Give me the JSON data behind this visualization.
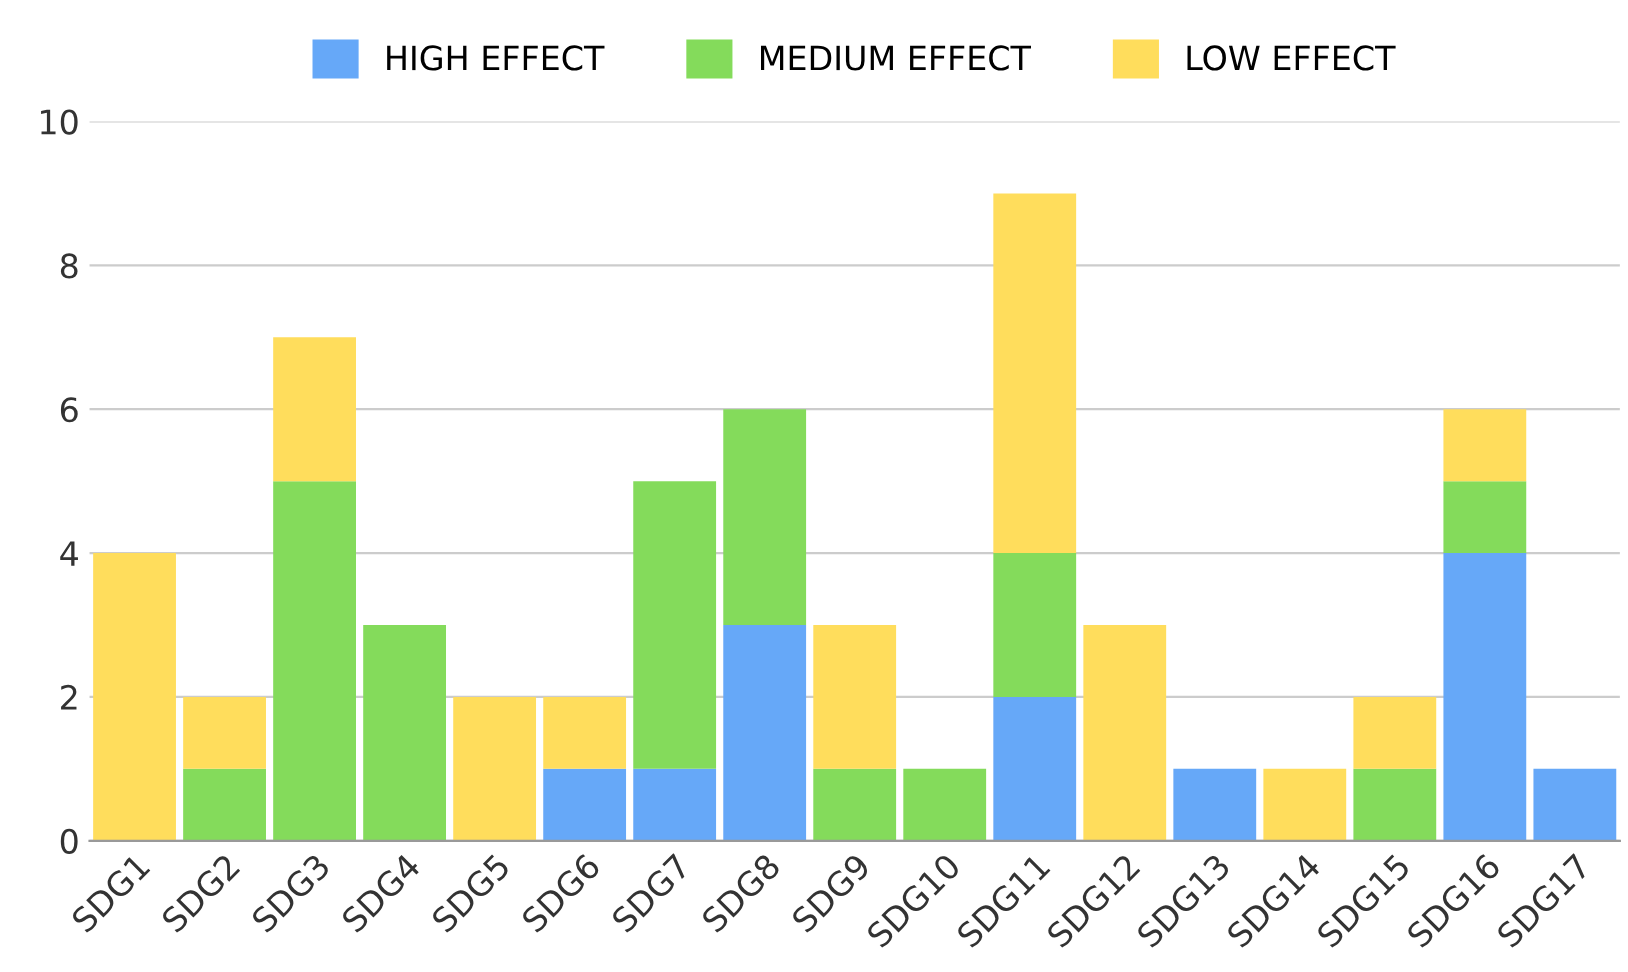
{
  "chart_data": {
    "type": "bar",
    "stacked": true,
    "categories": [
      "SDG1",
      "SDG2",
      "SDG3",
      "SDG4",
      "SDG5",
      "SDG6",
      "SDG7",
      "SDG8",
      "SDG9",
      "SDG10",
      "SDG11",
      "SDG12",
      "SDG13",
      "SDG14",
      "SDG15",
      "SDG16",
      "SDG17"
    ],
    "series": [
      {
        "name": "HIGH EFFECT",
        "color": "#66a8f8",
        "values": [
          0,
          0,
          0,
          0,
          0,
          1,
          1,
          3,
          0,
          0,
          2,
          0,
          1,
          0,
          0,
          4,
          1
        ]
      },
      {
        "name": "MEDIUM EFFECT",
        "color": "#84db5b",
        "values": [
          0,
          1,
          5,
          3,
          0,
          0,
          4,
          3,
          1,
          1,
          2,
          0,
          0,
          0,
          1,
          1,
          0
        ]
      },
      {
        "name": "LOW EFFECT",
        "color": "#ffdd5c",
        "values": [
          4,
          1,
          2,
          0,
          2,
          1,
          0,
          0,
          2,
          0,
          5,
          3,
          0,
          1,
          1,
          1,
          0
        ]
      }
    ],
    "ylim": [
      0,
      10
    ],
    "yticks": [
      0,
      2,
      4,
      6,
      8,
      10
    ],
    "grid": "y",
    "legend": "top"
  }
}
